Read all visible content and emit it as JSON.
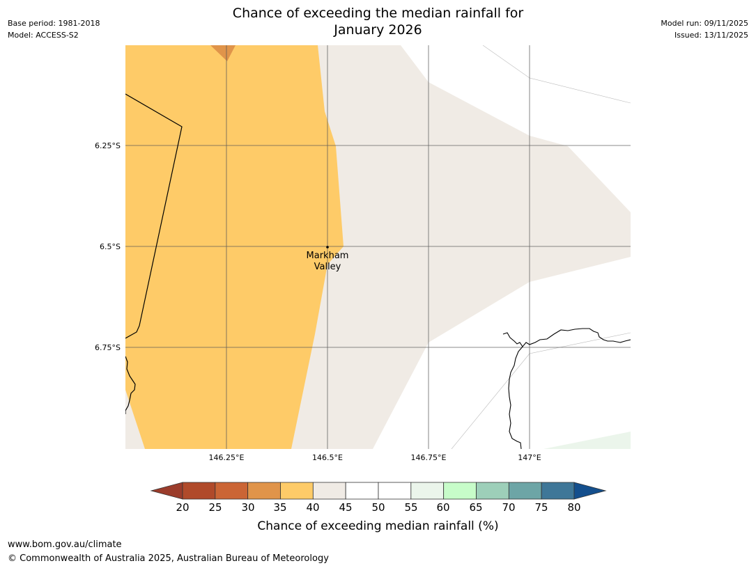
{
  "header": {
    "title_line1": "Chance of exceeding the median rainfall for",
    "title_line2": "January 2026",
    "base_period": "Base period: 1981-2018",
    "model": "Model: ACCESS-S2",
    "model_run": "Model run: 09/11/2025",
    "issued": "Issued: 13/11/2025"
  },
  "map": {
    "lat_labels": [
      "6.25°S",
      "6.5°S",
      "6.75°S"
    ],
    "lon_labels": [
      "146.25°E",
      "146.5°E",
      "146.75°E",
      "147°E"
    ],
    "place": {
      "line1": "Markham",
      "line2": "Valley"
    },
    "colors": {
      "band_30_35": "#e0944a",
      "band_35_40": "#fecb68",
      "band_40_45": "#f0ebe5",
      "band_55_60": "#ebf5eb",
      "gridline": "#555555",
      "coastline": "#000000"
    }
  },
  "colorbar": {
    "title": "Chance of exceeding median rainfall (%)",
    "ticks": [
      "20",
      "25",
      "30",
      "35",
      "40",
      "45",
      "50",
      "55",
      "60",
      "65",
      "70",
      "75",
      "80"
    ],
    "low_extend_color": "#9b3c2b",
    "high_extend_color": "#144f8d",
    "colors": [
      "#b04a2a",
      "#cb6535",
      "#e0944a",
      "#fecb68",
      "#f0ebe5",
      "#ffffff",
      "#ffffff",
      "#ebf5eb",
      "#c7fcc9",
      "#9dcfb9",
      "#6da5a6",
      "#3f7798"
    ]
  },
  "footer": {
    "url": "www.bom.gov.au/climate",
    "copyright": "© Commonwealth of Australia 2025, Australian Bureau of Meteorology"
  }
}
